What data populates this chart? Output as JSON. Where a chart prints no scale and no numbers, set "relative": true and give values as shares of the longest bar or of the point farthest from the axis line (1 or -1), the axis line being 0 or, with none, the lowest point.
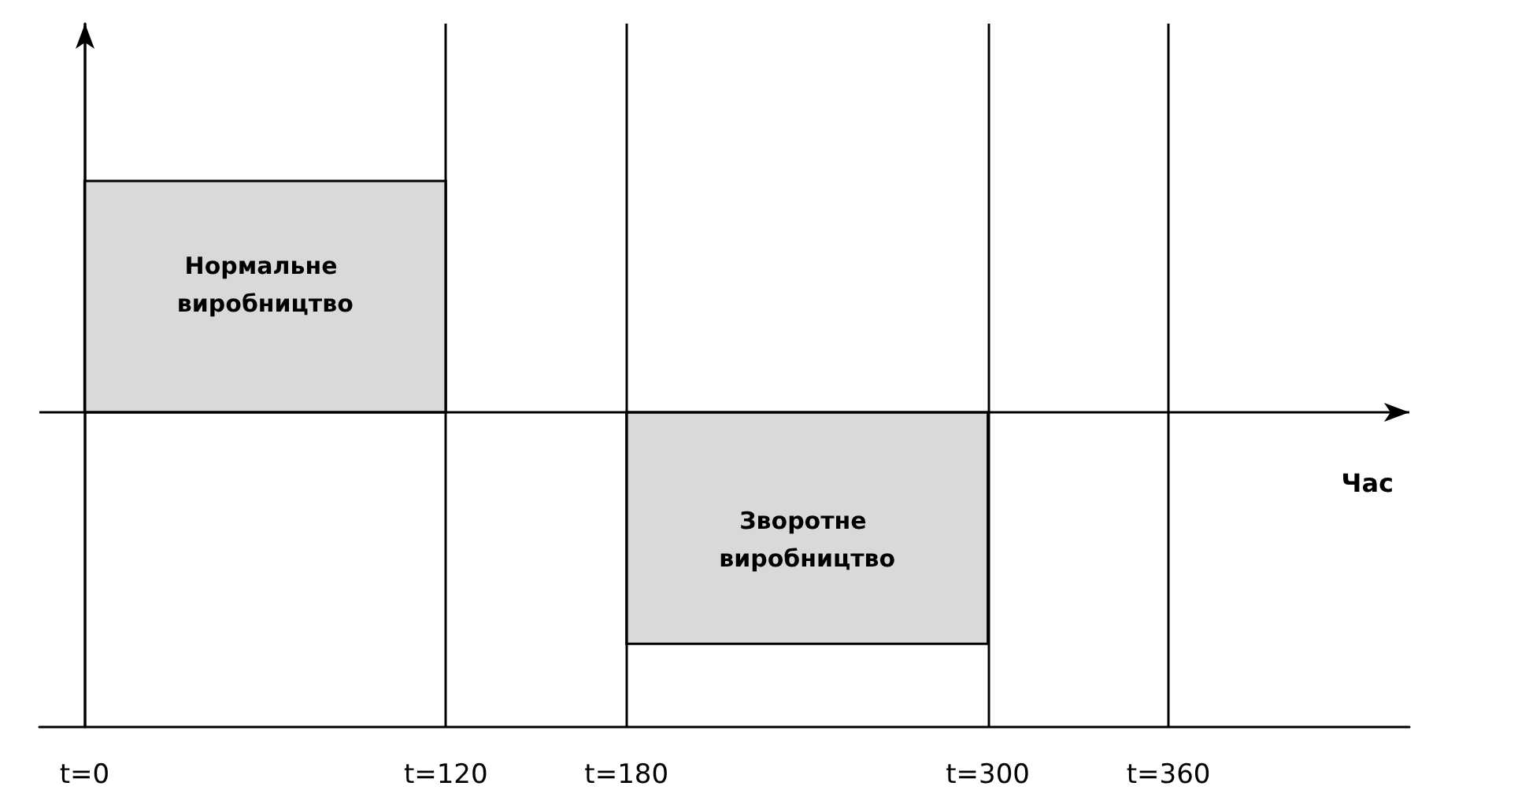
{
  "chart_data": {
    "type": "bar",
    "relative": true,
    "xlabel": "Час",
    "x": [
      60,
      240
    ],
    "values": [
      1,
      -1
    ],
    "color": "#d9d9d9",
    "xlim": [
      -15,
      440
    ],
    "xticks": [
      {
        "value": 0,
        "label": "t=0"
      },
      {
        "value": 120,
        "label": "t=120"
      },
      {
        "value": 180,
        "label": "t=180"
      },
      {
        "value": 300,
        "label": "t=300"
      },
      {
        "value": 360,
        "label": "t=360"
      }
    ],
    "grid": "x",
    "annotations": [
      "Нормальне виробництво",
      "Зворотне виробництво"
    ]
  }
}
